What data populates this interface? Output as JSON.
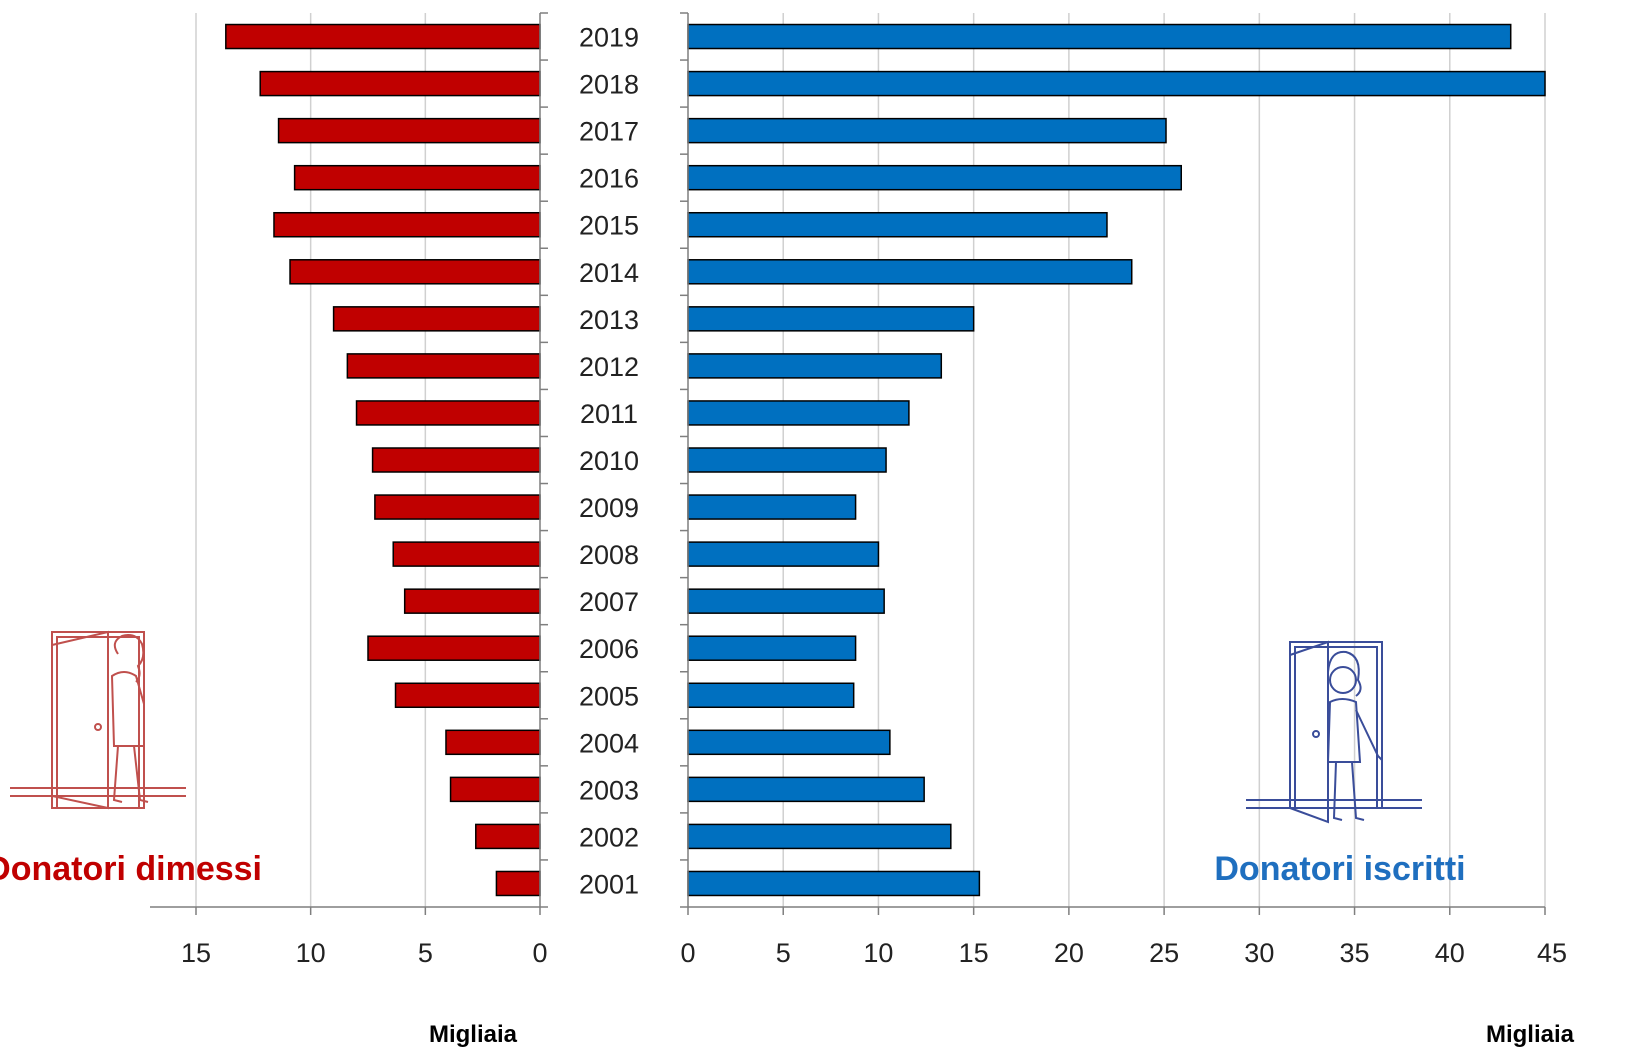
{
  "chart_data": [
    {
      "type": "bar",
      "orientation": "horizontal",
      "direction": "reversed",
      "series": [
        {
          "name": "Donatori dimessi",
          "color": "#c00000",
          "values": [
            1.9,
            2.8,
            3.9,
            4.1,
            6.3,
            7.5,
            5.9,
            6.4,
            7.2,
            7.3,
            8.0,
            8.4,
            9.0,
            10.9,
            11.6,
            10.7,
            11.4,
            12.2,
            13.7
          ]
        }
      ],
      "categories": [
        "2001",
        "2002",
        "2003",
        "2004",
        "2005",
        "2006",
        "2007",
        "2008",
        "2009",
        "2010",
        "2011",
        "2012",
        "2013",
        "2014",
        "2015",
        "2016",
        "2017",
        "2018",
        "2019"
      ],
      "xlabel": "Migliaia",
      "xlim": [
        0,
        15
      ],
      "xticks": [
        "15",
        "10",
        "5",
        "0"
      ],
      "grid": true,
      "icon": "person-leaving-door-icon"
    },
    {
      "type": "bar",
      "orientation": "horizontal",
      "series": [
        {
          "name": "Donatori iscritti",
          "color": "#0070c0",
          "values": [
            15.3,
            13.8,
            12.4,
            10.6,
            8.7,
            8.8,
            10.3,
            10.0,
            8.8,
            10.4,
            11.6,
            13.3,
            15.0,
            23.3,
            22.0,
            25.9,
            25.1,
            45.0,
            43.2
          ]
        }
      ],
      "categories": [
        "2001",
        "2002",
        "2003",
        "2004",
        "2005",
        "2006",
        "2007",
        "2008",
        "2009",
        "2010",
        "2011",
        "2012",
        "2013",
        "2014",
        "2015",
        "2016",
        "2017",
        "2018",
        "2019"
      ],
      "xlabel": "Migliaia",
      "xlim": [
        0,
        45
      ],
      "xticks": [
        "0",
        "5",
        "10",
        "15",
        "20",
        "25",
        "30",
        "35",
        "40",
        "45"
      ],
      "grid": true,
      "icon": "person-entering-door-icon"
    }
  ],
  "labels": {
    "left_series": "Donatori dimessi",
    "right_series": "Donatori iscritti",
    "left_unit": "Migliaia",
    "right_unit": "Migliaia"
  },
  "colors": {
    "left_bar": "#c00000",
    "right_bar": "#0070c0",
    "left_text": "#c00000",
    "right_text": "#1f6fbf",
    "left_icon": "#c0504d",
    "right_icon": "#3a4d9a",
    "grid": "#d0d0d0",
    "axis": "#7f7f7f"
  }
}
